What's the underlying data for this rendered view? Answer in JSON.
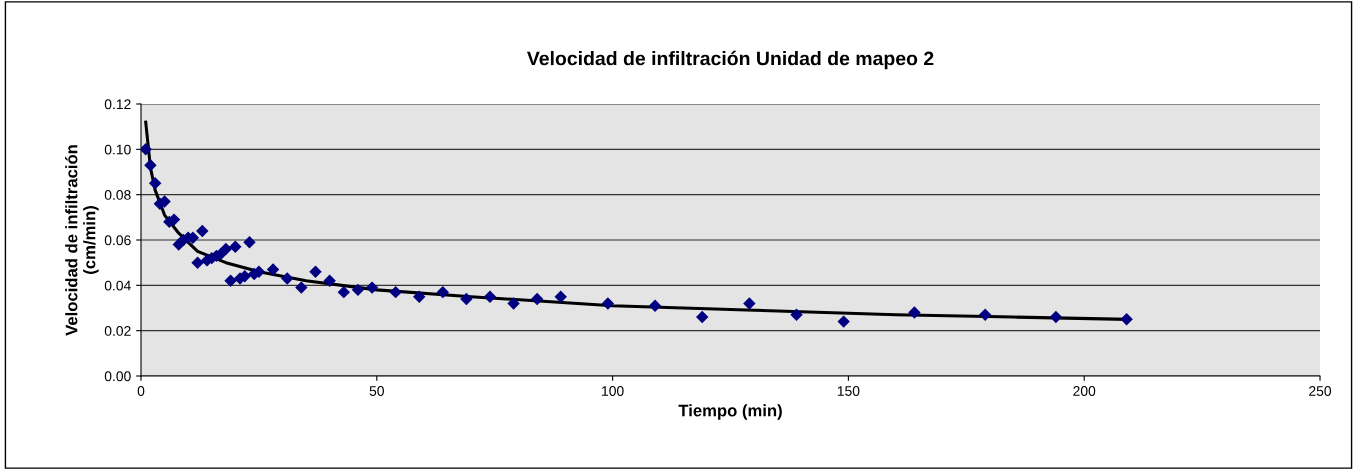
{
  "chart_data": {
    "type": "scatter",
    "title": "Velocidad de infiltración Unidad de mapeo 2",
    "xlabel": "Tiempo (min)",
    "ylabel": "Velocidad de infiltración\n(cm/min)",
    "xlim": [
      0,
      250
    ],
    "xticks": [
      0,
      50,
      100,
      150,
      200,
      250
    ],
    "ylim": [
      0,
      0.12
    ],
    "yticks": [
      {
        "value": 0,
        "label": "0.00"
      },
      {
        "value": 0.02,
        "label": "0.02"
      },
      {
        "value": 0.04,
        "label": "0.04"
      },
      {
        "value": 0.06,
        "label": "0.06"
      },
      {
        "value": 0.08,
        "label": "0.08"
      },
      {
        "value": 0.1,
        "label": "0.10"
      },
      {
        "value": 0.12,
        "label": "0.12"
      }
    ],
    "grid": "y",
    "legend": false,
    "series": [
      {
        "color": "#000080",
        "marker": "diamond",
        "x": [
          1,
          2,
          3,
          4,
          5,
          6,
          7,
          8,
          9,
          10,
          11,
          12,
          13,
          14,
          15,
          16,
          17,
          18,
          19,
          20,
          21,
          22,
          23,
          24,
          25,
          28,
          31,
          34,
          37,
          40,
          43,
          46,
          49,
          54,
          59,
          64,
          69,
          74,
          79,
          84,
          89,
          99,
          109,
          119,
          129,
          139,
          149,
          164,
          179,
          194,
          209
        ],
        "values": [
          0.1,
          0.093,
          0.085,
          0.076,
          0.077,
          0.068,
          0.069,
          0.058,
          0.06,
          0.061,
          0.061,
          0.05,
          0.064,
          0.051,
          0.052,
          0.053,
          0.054,
          0.056,
          0.042,
          0.057,
          0.043,
          0.044,
          0.059,
          0.045,
          0.046,
          0.047,
          0.043,
          0.039,
          0.046,
          0.042,
          0.037,
          0.038,
          0.039,
          0.037,
          0.035,
          0.037,
          0.034,
          0.035,
          0.032,
          0.034,
          0.035,
          0.032,
          0.031,
          0.026,
          0.032,
          0.027,
          0.024,
          0.028,
          0.027,
          0.026,
          0.025
        ]
      },
      {
        "type": "line",
        "color": "#000000",
        "marker": "none",
        "line_style": "solid",
        "x": [
          1,
          2,
          3,
          5,
          8,
          12,
          18,
          25,
          35,
          50,
          70,
          100,
          130,
          160,
          185,
          209
        ],
        "values": [
          0.112,
          0.092,
          0.082,
          0.071,
          0.063,
          0.055,
          0.05,
          0.046,
          0.042,
          0.038,
          0.035,
          0.031,
          0.029,
          0.027,
          0.026,
          0.025
        ]
      }
    ]
  }
}
